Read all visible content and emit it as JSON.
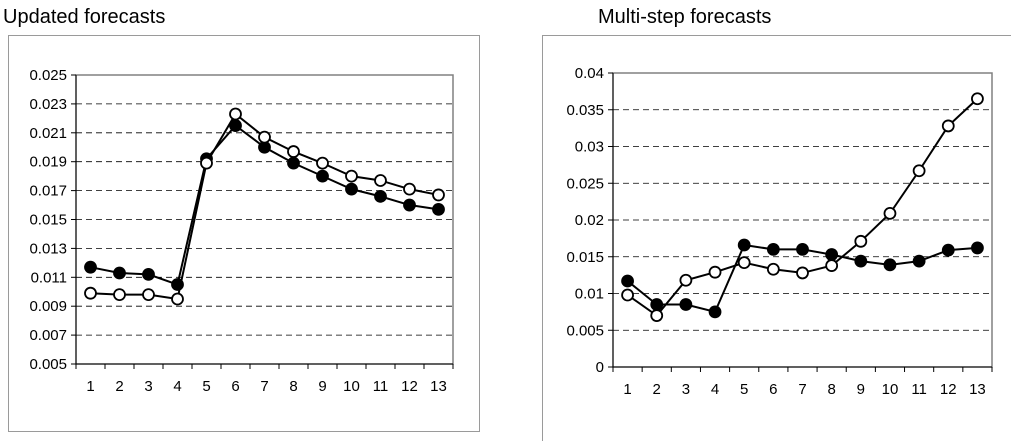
{
  "chart_data": [
    {
      "type": "line",
      "title": "Updated forecasts",
      "x": [
        1,
        2,
        3,
        4,
        5,
        6,
        7,
        8,
        9,
        10,
        11,
        12,
        13
      ],
      "ylim": [
        0.005,
        0.025
      ],
      "yticks": [
        "0.005",
        "0.007",
        "0.009",
        "0.011",
        "0.013",
        "0.015",
        "0.017",
        "0.019",
        "0.021",
        "0.023",
        "0.025"
      ],
      "grid": "horizontal dashed",
      "series": [
        {
          "marker": "filled-circle",
          "values": [
            0.0117,
            0.0113,
            0.0112,
            0.0105,
            0.0192,
            0.0215,
            0.02,
            0.0189,
            0.018,
            0.0171,
            0.0166,
            0.016,
            0.0157
          ]
        },
        {
          "marker": "open-circle",
          "values": [
            0.0099,
            0.0098,
            0.0098,
            0.0095,
            0.0189,
            0.0223,
            0.0207,
            0.0197,
            0.0189,
            0.018,
            0.0177,
            0.0171,
            0.0167
          ]
        }
      ]
    },
    {
      "type": "line",
      "title": "Multi-step forecasts",
      "x": [
        1,
        2,
        3,
        4,
        5,
        6,
        7,
        8,
        9,
        10,
        11,
        12,
        13
      ],
      "ylim": [
        0,
        0.04
      ],
      "yticks": [
        "0",
        "0.005",
        "0.01",
        "0.015",
        "0.02",
        "0.025",
        "0.03",
        "0.035",
        "0.04"
      ],
      "grid": "horizontal dashed",
      "series": [
        {
          "marker": "filled-circle",
          "values": [
            0.0117,
            0.0085,
            0.0085,
            0.0075,
            0.0166,
            0.016,
            0.016,
            0.0153,
            0.0144,
            0.0139,
            0.0144,
            0.0159,
            0.0162
          ]
        },
        {
          "marker": "open-circle",
          "values": [
            0.0098,
            0.007,
            0.0118,
            0.0129,
            0.0142,
            0.0133,
            0.0128,
            0.0138,
            0.0171,
            0.0209,
            0.0267,
            0.0328,
            0.0365
          ]
        }
      ]
    }
  ]
}
